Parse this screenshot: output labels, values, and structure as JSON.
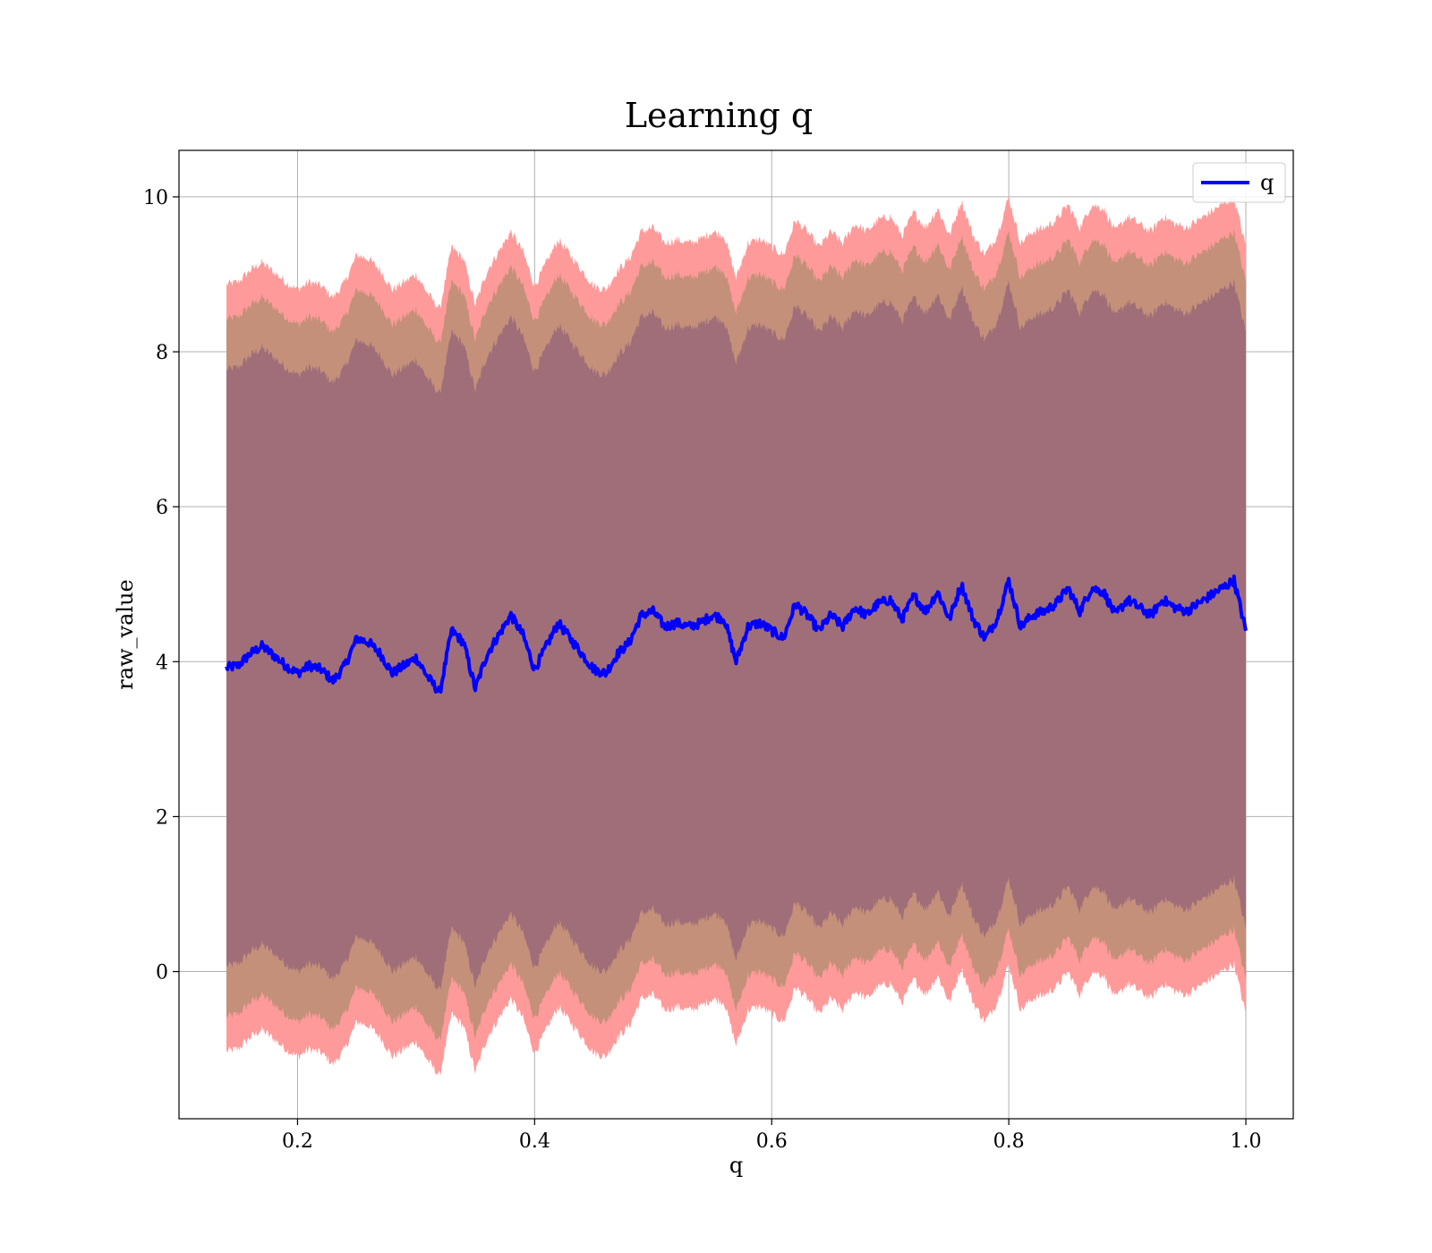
{
  "chart_data": {
    "type": "line",
    "title": "Learning q",
    "xlabel": "q",
    "ylabel": "raw_value",
    "xlim": [
      0.1,
      1.04
    ],
    "ylim": [
      -1.9,
      10.6
    ],
    "xticks": [
      0.2,
      0.4,
      0.6,
      0.8,
      1.0
    ],
    "xtick_labels": [
      "0.2",
      "0.4",
      "0.6",
      "0.8",
      "1.0"
    ],
    "yticks": [
      0,
      2,
      4,
      6,
      8,
      10
    ],
    "ytick_labels": [
      "0",
      "2",
      "4",
      "6",
      "8",
      "10"
    ],
    "grid": true,
    "legend": {
      "position": "top-right",
      "entries": [
        "q"
      ]
    },
    "colors": {
      "line": "#0000ff",
      "band_outer": "#ff9a9a",
      "band_middle": "#c4907a",
      "band_inner": "#a06e78"
    },
    "series": [
      {
        "name": "q",
        "x": [
          0.14,
          0.15,
          0.16,
          0.17,
          0.18,
          0.19,
          0.2,
          0.21,
          0.22,
          0.23,
          0.24,
          0.25,
          0.26,
          0.27,
          0.28,
          0.29,
          0.3,
          0.31,
          0.32,
          0.33,
          0.34,
          0.35,
          0.36,
          0.37,
          0.38,
          0.39,
          0.4,
          0.41,
          0.42,
          0.43,
          0.44,
          0.45,
          0.46,
          0.47,
          0.48,
          0.49,
          0.5,
          0.51,
          0.52,
          0.53,
          0.54,
          0.55,
          0.56,
          0.57,
          0.58,
          0.59,
          0.6,
          0.61,
          0.62,
          0.63,
          0.64,
          0.65,
          0.66,
          0.67,
          0.68,
          0.69,
          0.7,
          0.71,
          0.72,
          0.73,
          0.74,
          0.75,
          0.76,
          0.77,
          0.78,
          0.79,
          0.8,
          0.81,
          0.82,
          0.83,
          0.84,
          0.85,
          0.86,
          0.87,
          0.88,
          0.89,
          0.9,
          0.91,
          0.92,
          0.93,
          0.94,
          0.95,
          0.96,
          0.97,
          0.98,
          0.99,
          1.0
        ],
        "y": [
          3.92,
          3.95,
          4.1,
          4.2,
          4.08,
          3.95,
          3.85,
          3.95,
          3.9,
          3.75,
          3.95,
          4.3,
          4.25,
          4.1,
          3.85,
          3.95,
          4.05,
          3.8,
          3.6,
          4.4,
          4.25,
          3.65,
          4.1,
          4.35,
          4.6,
          4.35,
          3.9,
          4.2,
          4.5,
          4.3,
          4.1,
          3.9,
          3.85,
          4.1,
          4.25,
          4.6,
          4.65,
          4.45,
          4.5,
          4.45,
          4.5,
          4.6,
          4.55,
          4.0,
          4.45,
          4.5,
          4.4,
          4.3,
          4.75,
          4.6,
          4.4,
          4.6,
          4.45,
          4.7,
          4.6,
          4.75,
          4.8,
          4.55,
          4.85,
          4.65,
          4.9,
          4.55,
          5.0,
          4.55,
          4.3,
          4.55,
          5.05,
          4.45,
          4.6,
          4.65,
          4.75,
          4.95,
          4.65,
          4.95,
          4.9,
          4.6,
          4.8,
          4.7,
          4.6,
          4.8,
          4.7,
          4.65,
          4.75,
          4.85,
          4.95,
          5.05,
          4.4
        ]
      }
    ],
    "bands": [
      {
        "level": "outer",
        "offset": 4.95
      },
      {
        "level": "middle",
        "offset": 4.5
      },
      {
        "level": "inner",
        "offset": 3.85
      }
    ]
  }
}
